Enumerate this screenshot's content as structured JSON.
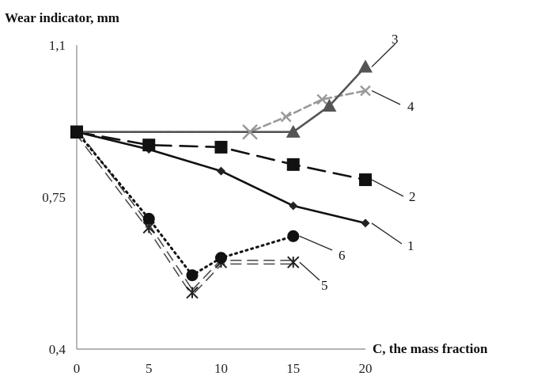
{
  "chart_data": {
    "type": "line",
    "title": "",
    "ylabel": "Wear indicator, mm",
    "xlabel": "C, the mass fraction",
    "xlim": [
      0,
      20
    ],
    "ylim": [
      0.4,
      1.1
    ],
    "xticks": [
      0,
      5,
      10,
      15,
      20
    ],
    "yticks": [
      {
        "value": 0.4,
        "label": "0,4"
      },
      {
        "value": 0.75,
        "label": "0,75"
      },
      {
        "value": 1.1,
        "label": "1,1"
      }
    ],
    "grid": false,
    "legend": "none",
    "series": [
      {
        "name": "1",
        "color": "#111111",
        "style": "solid",
        "marker": "diamond",
        "points": [
          [
            0,
            0.9
          ],
          [
            5,
            0.86
          ],
          [
            10,
            0.81
          ],
          [
            15,
            0.73
          ],
          [
            20,
            0.69
          ]
        ]
      },
      {
        "name": "2",
        "color": "#111111",
        "style": "long-dash",
        "marker": "square",
        "points": [
          [
            0,
            0.9
          ],
          [
            5,
            0.87
          ],
          [
            10,
            0.865
          ],
          [
            15,
            0.825
          ],
          [
            20,
            0.79
          ]
        ]
      },
      {
        "name": "3",
        "color": "#555555",
        "style": "solid",
        "marker": "triangle",
        "points": [
          [
            0,
            0.9
          ],
          [
            12,
            0.9
          ],
          [
            15,
            0.9
          ],
          [
            17.5,
            0.96
          ],
          [
            20,
            1.05
          ]
        ]
      },
      {
        "name": "4",
        "color": "#999999",
        "style": "dashed",
        "marker": "x",
        "points": [
          [
            0,
            0.9
          ],
          [
            12,
            0.9
          ],
          [
            14.5,
            0.935
          ],
          [
            17,
            0.975
          ],
          [
            20,
            0.995
          ]
        ]
      },
      {
        "name": "5",
        "color": "#555555",
        "style": "double-dash",
        "marker": "star",
        "points": [
          [
            0,
            0.9
          ],
          [
            5,
            0.68
          ],
          [
            8,
            0.53
          ],
          [
            10,
            0.6
          ],
          [
            15,
            0.6
          ]
        ]
      },
      {
        "name": "6",
        "color": "#111111",
        "style": "dotted",
        "marker": "circle",
        "points": [
          [
            0,
            0.9
          ],
          [
            5,
            0.7
          ],
          [
            8,
            0.57
          ],
          [
            10,
            0.61
          ],
          [
            15,
            0.66
          ]
        ]
      }
    ]
  }
}
